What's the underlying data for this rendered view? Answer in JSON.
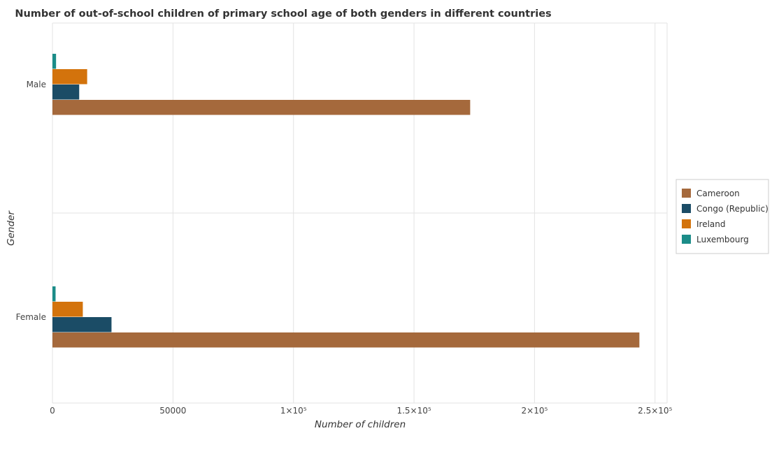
{
  "chart_data": {
    "type": "bar",
    "orientation": "horizontal",
    "title": "Number of out-of-school children of primary school age of both genders in different countries",
    "xlabel": "Number of children",
    "ylabel": "Gender",
    "categories": [
      "Female",
      "Male"
    ],
    "series": [
      {
        "name": "Cameroon",
        "color": "#a5693c",
        "values": [
          243500,
          173300
        ]
      },
      {
        "name": "Congo (Republic)",
        "color": "#1b4c66",
        "values": [
          24500,
          11100
        ]
      },
      {
        "name": "Ireland",
        "color": "#d3730c",
        "values": [
          12600,
          14400
        ]
      },
      {
        "name": "Luxembourg",
        "color": "#1b8c88",
        "values": [
          1300,
          1500
        ]
      }
    ],
    "xlim": [
      0,
      255000
    ],
    "xticks": [
      0,
      50000,
      100000,
      150000,
      200000,
      250000
    ],
    "xtick_labels": [
      "0",
      "50000",
      "1×10⁵",
      "1.5×10⁵",
      "2×10⁵",
      "2.5×10⁵"
    ],
    "grid": true,
    "legend_position": "right"
  }
}
